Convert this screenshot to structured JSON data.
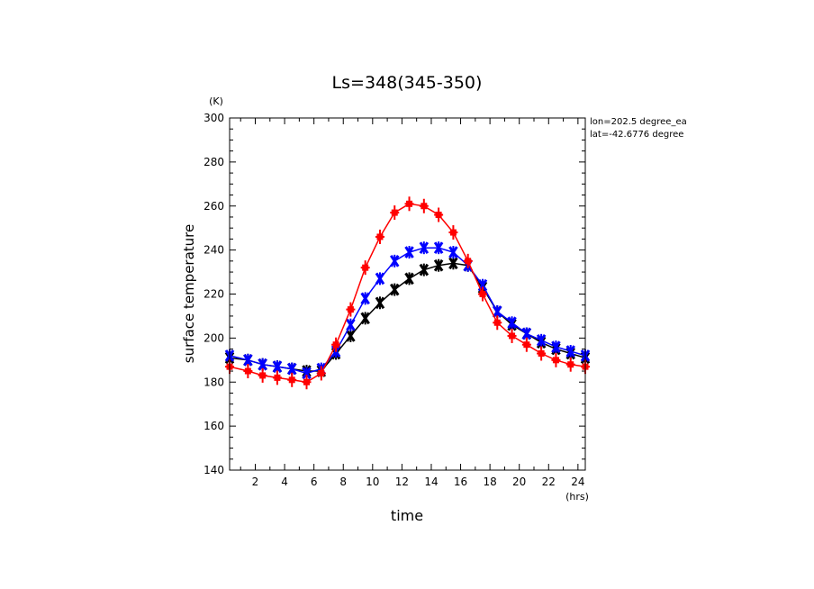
{
  "chart_data": {
    "type": "line",
    "title": "Ls=348(345-350)",
    "xlabel": "time",
    "ylabel": "surface temperature",
    "x_unit": "(hrs)",
    "y_unit": "(K)",
    "xlim": [
      0.25,
      24.5
    ],
    "ylim": [
      140,
      300
    ],
    "x_ticks": [
      2,
      4,
      6,
      8,
      10,
      12,
      14,
      16,
      18,
      20,
      22,
      24
    ],
    "y_ticks": [
      140,
      160,
      180,
      200,
      220,
      240,
      260,
      280,
      300
    ],
    "annotations": [
      "lon=202.5 degree_ea",
      "lat=-42.6776 degree"
    ],
    "x": [
      0.25,
      1.5,
      2.5,
      3.5,
      4.5,
      5.5,
      6.5,
      7.5,
      8.5,
      9.5,
      10.5,
      11.5,
      12.5,
      13.5,
      14.5,
      15.5,
      16.5,
      17.5,
      18.5,
      19.5,
      20.5,
      21.5,
      22.5,
      23.5,
      24.5
    ],
    "series": [
      {
        "color": "#000000",
        "values": [
          191,
          190,
          188,
          187,
          186,
          185,
          185,
          193,
          201,
          209,
          216,
          222,
          227,
          231,
          233,
          234,
          233,
          223,
          212,
          206,
          202,
          198,
          195,
          193,
          191
        ]
      },
      {
        "color": "#0000ff",
        "values": [
          192,
          190,
          188,
          187,
          186,
          184,
          186,
          194,
          206,
          218,
          227,
          235,
          239,
          241,
          241,
          239,
          233,
          224,
          212,
          207,
          202,
          199,
          196,
          194,
          192
        ]
      },
      {
        "color": "#ff0000",
        "values": [
          187,
          185,
          183,
          182,
          181,
          180,
          184,
          197,
          213,
          232,
          246,
          257,
          261,
          260,
          256,
          248,
          235,
          220,
          207,
          201,
          197,
          193,
          190,
          188,
          187
        ]
      }
    ]
  }
}
